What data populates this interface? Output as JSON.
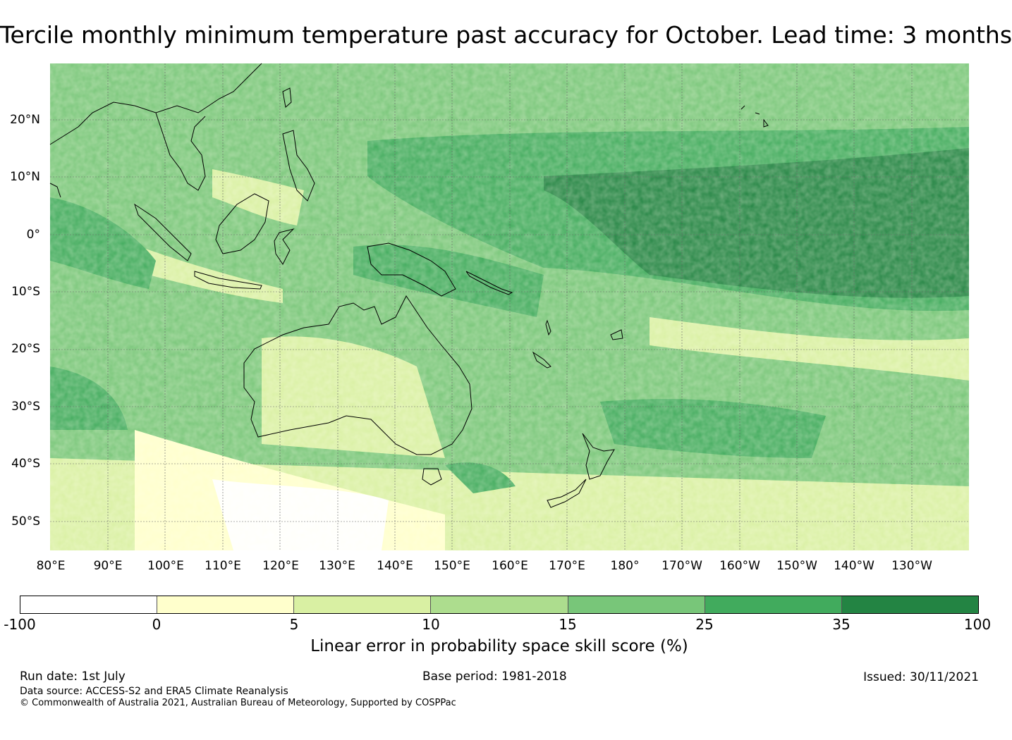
{
  "title": "Tercile monthly minimum temperature past accuracy for October. Lead time: 3 months",
  "map": {
    "lat_labels": [
      "20°N",
      "10°N",
      "0°",
      "10°S",
      "20°S",
      "30°S",
      "40°S",
      "50°S"
    ],
    "lon_labels": [
      "80°E",
      "90°E",
      "100°E",
      "110°E",
      "120°E",
      "130°E",
      "140°E",
      "150°E",
      "160°E",
      "170°E",
      "180°",
      "170°W",
      "160°W",
      "150°W",
      "140°W",
      "130°W"
    ],
    "land_outline_color": "#000000",
    "grid": true
  },
  "colorbar": {
    "ticks": [
      "-100",
      "0",
      "5",
      "10",
      "15",
      "25",
      "35",
      "100"
    ],
    "colors": [
      "#ffffff",
      "#ffffcc",
      "#d9f0a3",
      "#addd8e",
      "#78c679",
      "#41ab5d",
      "#238443"
    ],
    "label": "Linear error in probability space skill score (%)"
  },
  "footer": {
    "run_date": "Run date: 1st July",
    "base_period": "Base period: 1981-2018",
    "issued": "Issued: 30/11/2021",
    "data_source": "Data source: ACCESS-S2 and ERA5 Climate Reanalysis",
    "copyright": "© Commonwealth of Australia 2021, Australian Bureau of Meteorology, Supported by COSPPac"
  }
}
